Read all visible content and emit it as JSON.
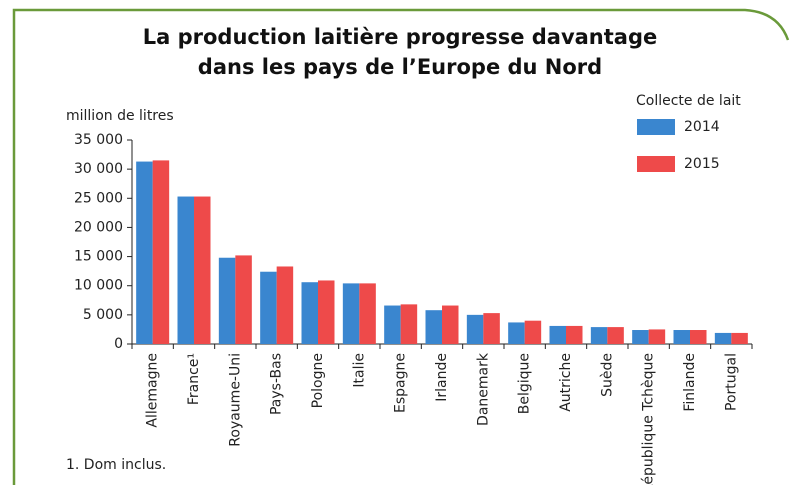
{
  "chart_data": {
    "type": "bar",
    "title": [
      "La production laitière progresse davantage",
      "dans les pays de l’Europe du Nord"
    ],
    "y_axis_label": "million de litres",
    "legend_title": "Collecte de lait",
    "footnote": "1. Dom inclus.",
    "categories": [
      "Allemagne",
      "France¹",
      "Royaume-Uni",
      "Pays-Bas",
      "Pologne",
      "Italie",
      "Espagne",
      "Irlande",
      "Danemark",
      "Belgique",
      "Autriche",
      "Suède",
      "République Tchèque",
      "Finlande",
      "Portugal"
    ],
    "series": [
      {
        "name": "2014",
        "color": "#3a86cf",
        "values": [
          31300,
          25300,
          14800,
          12400,
          10600,
          10400,
          6600,
          5800,
          5000,
          3700,
          3100,
          2900,
          2400,
          2400,
          1900
        ]
      },
      {
        "name": "2015",
        "color": "#ee4a4a",
        "values": [
          31500,
          25300,
          15200,
          13300,
          10900,
          10400,
          6800,
          6600,
          5300,
          4000,
          3100,
          2900,
          2500,
          2400,
          1900
        ]
      }
    ],
    "ylim": [
      0,
      35000
    ],
    "yticks": [
      0,
      {
        "value": 5000,
        "label": "5 000"
      },
      {
        "value": 10000,
        "label": "10 000"
      },
      {
        "value": 15000,
        "label": "15 000"
      },
      {
        "value": 20000,
        "label": "20 000"
      },
      {
        "value": 25000,
        "label": "25 000"
      },
      {
        "value": 30000,
        "label": "30 000"
      },
      {
        "value": 35000,
        "label": "35 000"
      }
    ],
    "legend_position": "top-right"
  }
}
